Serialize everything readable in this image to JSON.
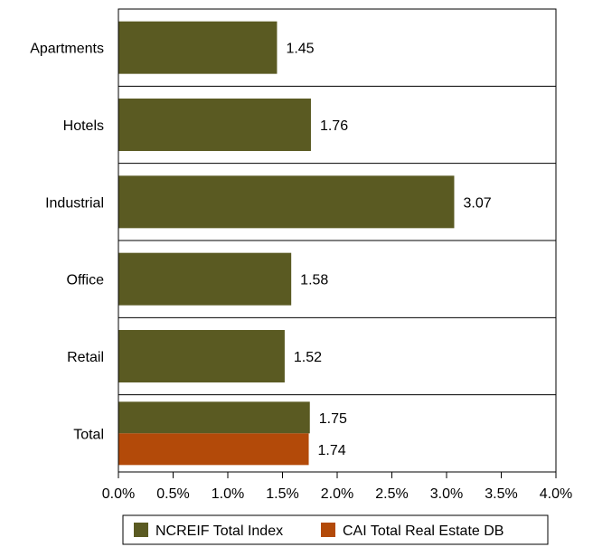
{
  "chart_data": {
    "type": "bar",
    "orientation": "horizontal",
    "categories": [
      "Apartments",
      "Hotels",
      "Industrial",
      "Office",
      "Retail",
      "Total"
    ],
    "series": [
      {
        "name": "NCREIF Total Index",
        "color": "#5a5a22",
        "values": [
          1.45,
          1.76,
          3.07,
          1.58,
          1.52,
          1.75
        ],
        "labels": [
          "1.45",
          "1.76",
          "3.07",
          "1.58",
          "1.52",
          "1.75"
        ]
      },
      {
        "name": "CAI Total Real Estate DB",
        "color": "#b34a09",
        "values": [
          null,
          null,
          null,
          null,
          null,
          1.74
        ],
        "labels": [
          null,
          null,
          null,
          null,
          null,
          "1.74"
        ]
      }
    ],
    "xlim": [
      0,
      4.0
    ],
    "xticks": [
      "0.0%",
      "0.5%",
      "1.0%",
      "1.5%",
      "2.0%",
      "2.5%",
      "3.0%",
      "3.5%",
      "4.0%"
    ],
    "xlabel": "",
    "ylabel": "",
    "title": "",
    "grid": "horizontal category separators",
    "legend_position": "bottom"
  }
}
